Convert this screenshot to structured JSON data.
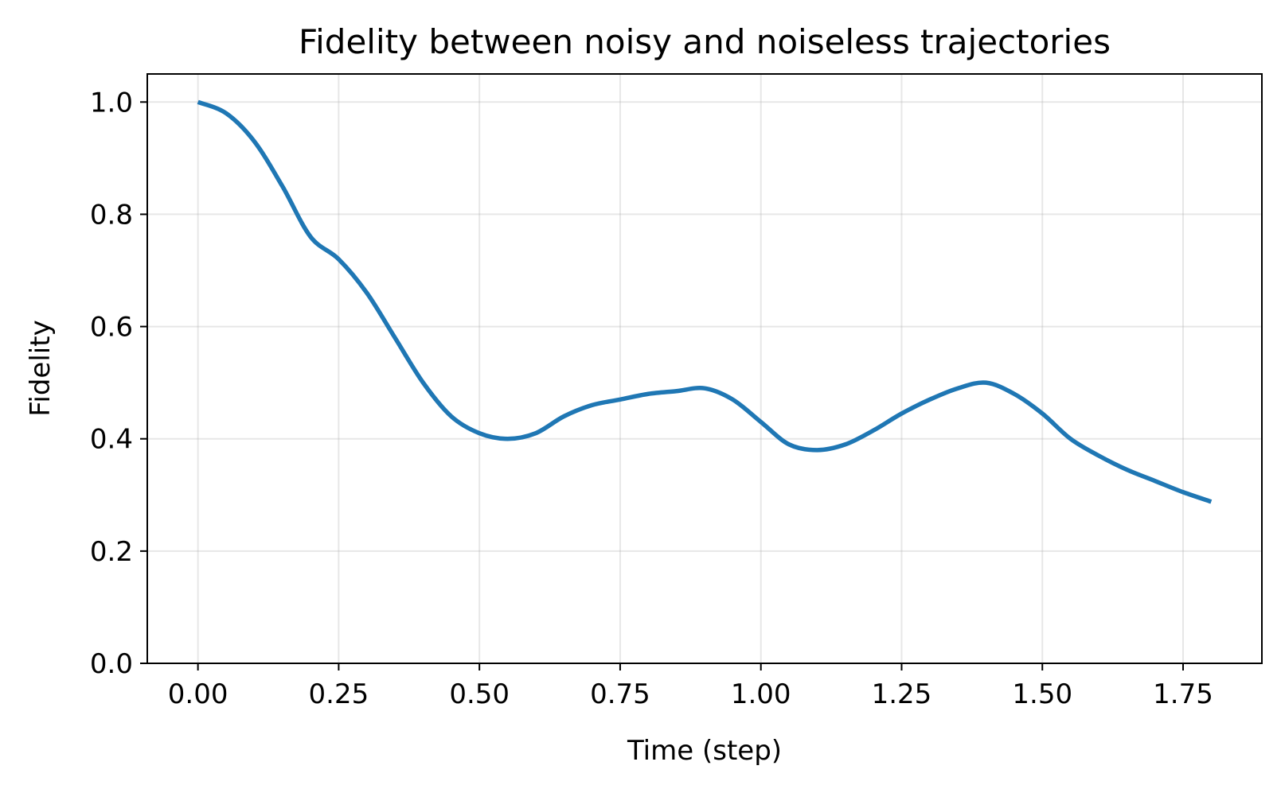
{
  "chart_data": {
    "type": "line",
    "title": "Fidelity between noisy and noiseless trajectories",
    "xlabel": "Time (step)",
    "ylabel": "Fidelity",
    "xlim": [
      -0.09,
      1.89
    ],
    "ylim": [
      0.0,
      1.05
    ],
    "xticks": [
      0.0,
      0.25,
      0.5,
      0.75,
      1.0,
      1.25,
      1.5,
      1.75
    ],
    "xtick_labels": [
      "0.00",
      "0.25",
      "0.50",
      "0.75",
      "1.00",
      "1.25",
      "1.50",
      "1.75"
    ],
    "yticks": [
      0.0,
      0.2,
      0.4,
      0.6,
      0.8,
      1.0
    ],
    "ytick_labels": [
      "0.0",
      "0.2",
      "0.4",
      "0.6",
      "0.8",
      "1.0"
    ],
    "grid": true,
    "line_color": "#1f77b4",
    "series": [
      {
        "x": [
          0.0,
          0.05,
          0.1,
          0.15,
          0.2,
          0.25,
          0.3,
          0.35,
          0.4,
          0.45,
          0.5,
          0.55,
          0.6,
          0.65,
          0.7,
          0.75,
          0.8,
          0.85,
          0.9,
          0.95,
          1.0,
          1.05,
          1.1,
          1.15,
          1.2,
          1.25,
          1.3,
          1.35,
          1.4,
          1.45,
          1.5,
          1.55,
          1.6,
          1.65,
          1.7,
          1.75,
          1.8
        ],
        "values": [
          1.0,
          0.98,
          0.93,
          0.85,
          0.76,
          0.72,
          0.66,
          0.58,
          0.5,
          0.44,
          0.41,
          0.4,
          0.41,
          0.44,
          0.46,
          0.47,
          0.48,
          0.485,
          0.49,
          0.47,
          0.43,
          0.39,
          0.38,
          0.39,
          0.415,
          0.445,
          0.47,
          0.49,
          0.5,
          0.48,
          0.445,
          0.4,
          0.37,
          0.345,
          0.325,
          0.305,
          0.288
        ]
      }
    ]
  }
}
